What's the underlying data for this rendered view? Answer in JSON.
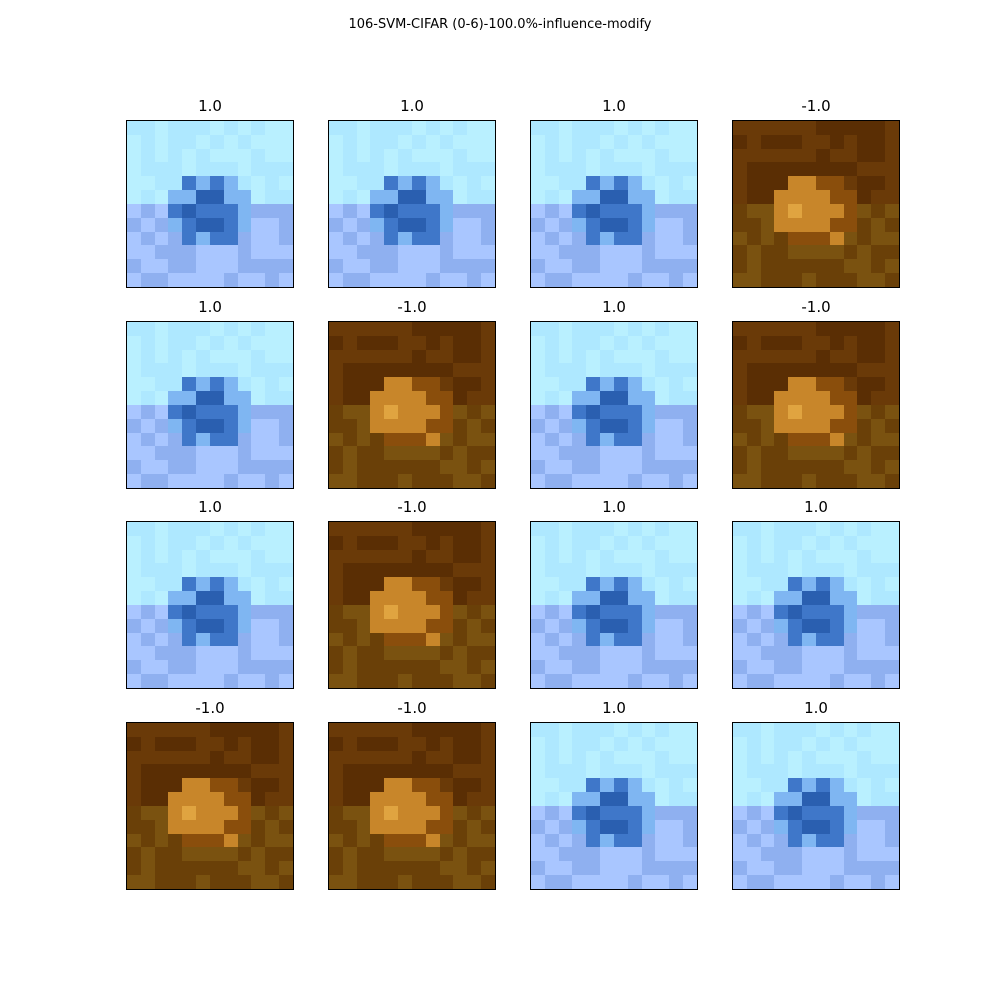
{
  "figure": {
    "title": "106-SVM-CIFAR (0-6)-100.0%-influence-modify"
  },
  "panels": [
    {
      "label": "1.0",
      "image": "blue-sky"
    },
    {
      "label": "1.0",
      "image": "blue-sky"
    },
    {
      "label": "1.0",
      "image": "blue-sky"
    },
    {
      "label": "-1.0",
      "image": "brown-frog"
    },
    {
      "label": "1.0",
      "image": "blue-sky"
    },
    {
      "label": "-1.0",
      "image": "brown-frog"
    },
    {
      "label": "1.0",
      "image": "blue-sky"
    },
    {
      "label": "-1.0",
      "image": "brown-frog"
    },
    {
      "label": "1.0",
      "image": "blue-sky"
    },
    {
      "label": "-1.0",
      "image": "brown-frog"
    },
    {
      "label": "1.0",
      "image": "blue-sky"
    },
    {
      "label": "1.0",
      "image": "blue-sky"
    },
    {
      "label": "-1.0",
      "image": "brown-frog"
    },
    {
      "label": "-1.0",
      "image": "brown-frog"
    },
    {
      "label": "1.0",
      "image": "blue-sky"
    },
    {
      "label": "1.0",
      "image": "blue-sky"
    }
  ],
  "palettes": {
    "blue-sky": {
      "top": "#aee8ff",
      "top_alt": "#b9f0ff",
      "mid": "#7fb6f2",
      "center": "#3f77c9",
      "center_dark": "#2a5fb0",
      "bottom": "#8fb0f0",
      "bottom_alt": "#a9c6ff"
    },
    "brown-frog": {
      "top": "#6a3a08",
      "top_alt": "#5a2e04",
      "mid": "#8a4e0c",
      "center": "#c8862a",
      "center_dark": "#e0a440",
      "bottom": "#7a5210",
      "bottom_alt": "#6a4008"
    }
  }
}
